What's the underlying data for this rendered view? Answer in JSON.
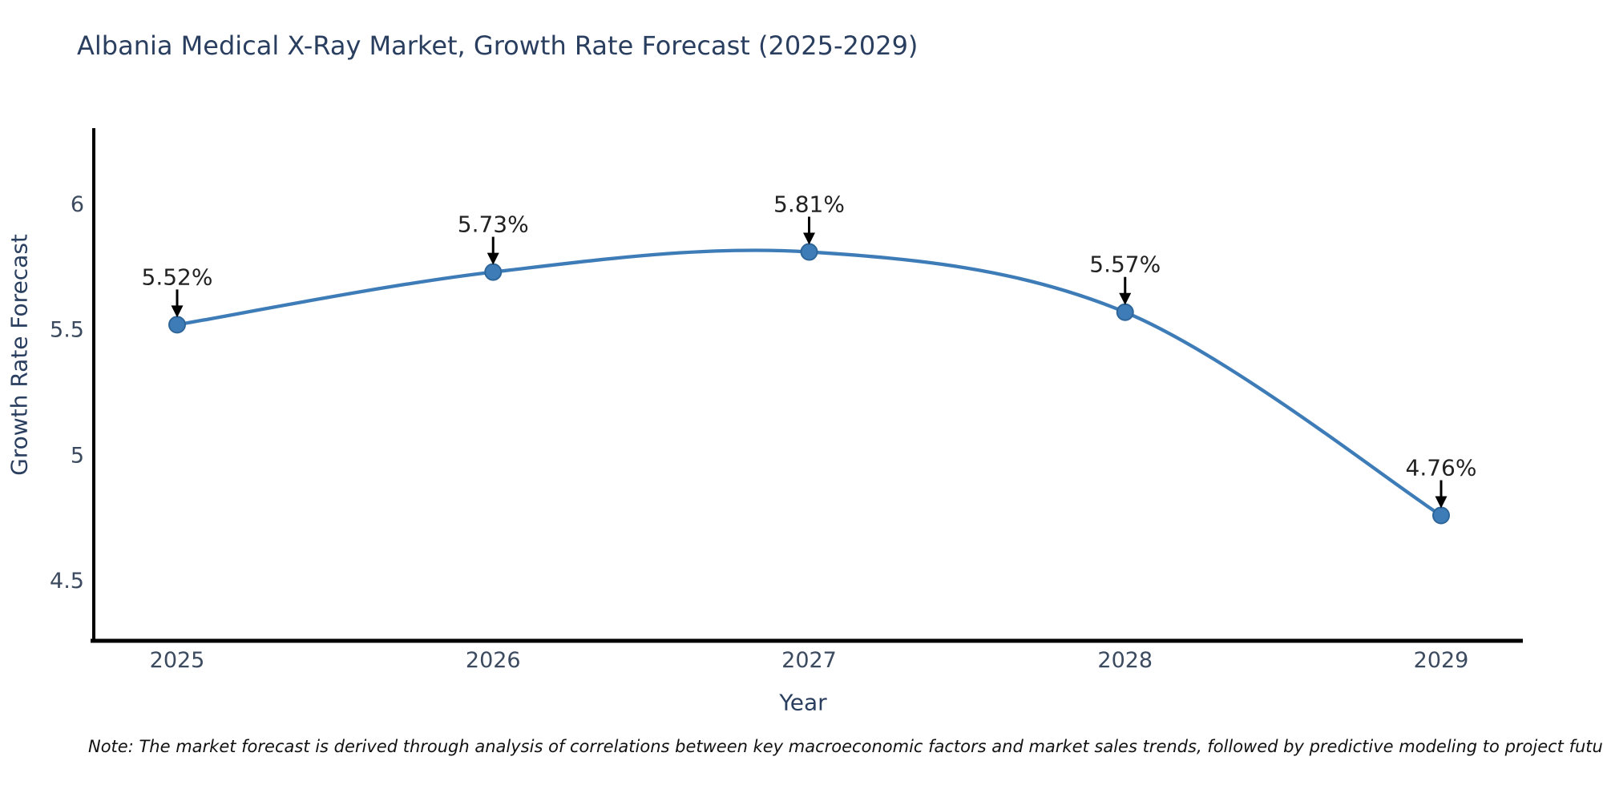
{
  "header": {
    "title": "Albania Medical X-Ray Market, Growth Rate Forecast (2025-2029)"
  },
  "footnote": {
    "text": "Note: The market forecast is derived through analysis of correlations between key macroeconomic factors and market sales trends, followed by predictive modeling to project future sales"
  },
  "chart_data": {
    "type": "line",
    "title": "Albania Medical X-Ray Market, Growth Rate Forecast (2025-2029)",
    "xlabel": "Year",
    "ylabel": "Growth Rate Forecast",
    "categories": [
      "2025",
      "2026",
      "2027",
      "2028",
      "2029"
    ],
    "x": [
      2025,
      2026,
      2027,
      2028,
      2029
    ],
    "values": [
      5.52,
      5.73,
      5.81,
      5.57,
      4.76
    ],
    "point_labels": [
      "5.52%",
      "5.73%",
      "5.81%",
      "5.57%",
      "4.76%"
    ],
    "yticks": [
      6,
      5.5,
      5,
      4.5
    ],
    "ytick_labels": [
      "6",
      "5.5",
      "5",
      "4.5"
    ],
    "ylim": [
      4.26,
      6.3
    ],
    "xlim": [
      2024.74,
      2029.26
    ],
    "grid": false,
    "legend": "none",
    "colors": {
      "line": "#3e7cb8",
      "marker_fill": "#3e7cb8",
      "marker_edge": "#2f6699",
      "annotation_text": "#222222",
      "annotation_arrow": "#000000",
      "axis_spine": "#000000",
      "tick_label": "#3b4a5f",
      "title": "#2a3f5f"
    }
  }
}
